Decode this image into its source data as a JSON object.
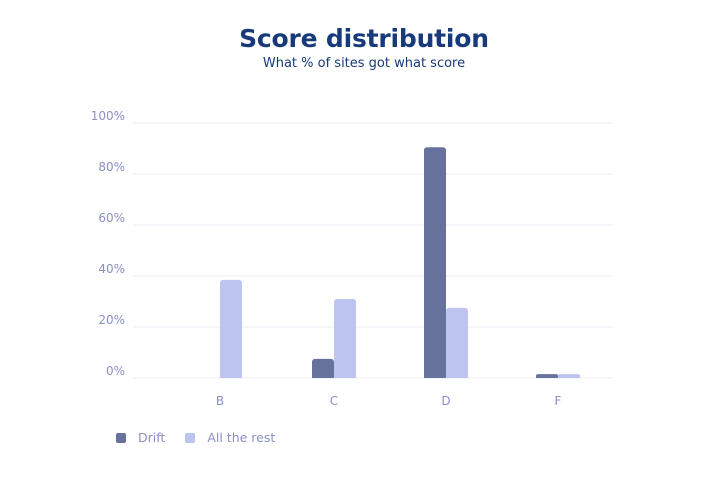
{
  "chart_data": {
    "type": "bar",
    "title": "Score distribution",
    "subtitle": "What % of sites got what score",
    "categories": [
      "B",
      "C",
      "D",
      "F"
    ],
    "series": [
      {
        "name": "Drift",
        "values": [
          0,
          7.5,
          90.5,
          1.5
        ],
        "color": "#67729c"
      },
      {
        "name": "All the rest",
        "values": [
          38.5,
          31,
          27.5,
          1.5
        ],
        "color": "#bdc4f0"
      }
    ],
    "ylim": [
      0,
      100
    ],
    "yticks": [
      "0%",
      "20%",
      "40%",
      "60%",
      "80%",
      "100%"
    ],
    "grid": true,
    "legend_position": "bottom-left"
  }
}
